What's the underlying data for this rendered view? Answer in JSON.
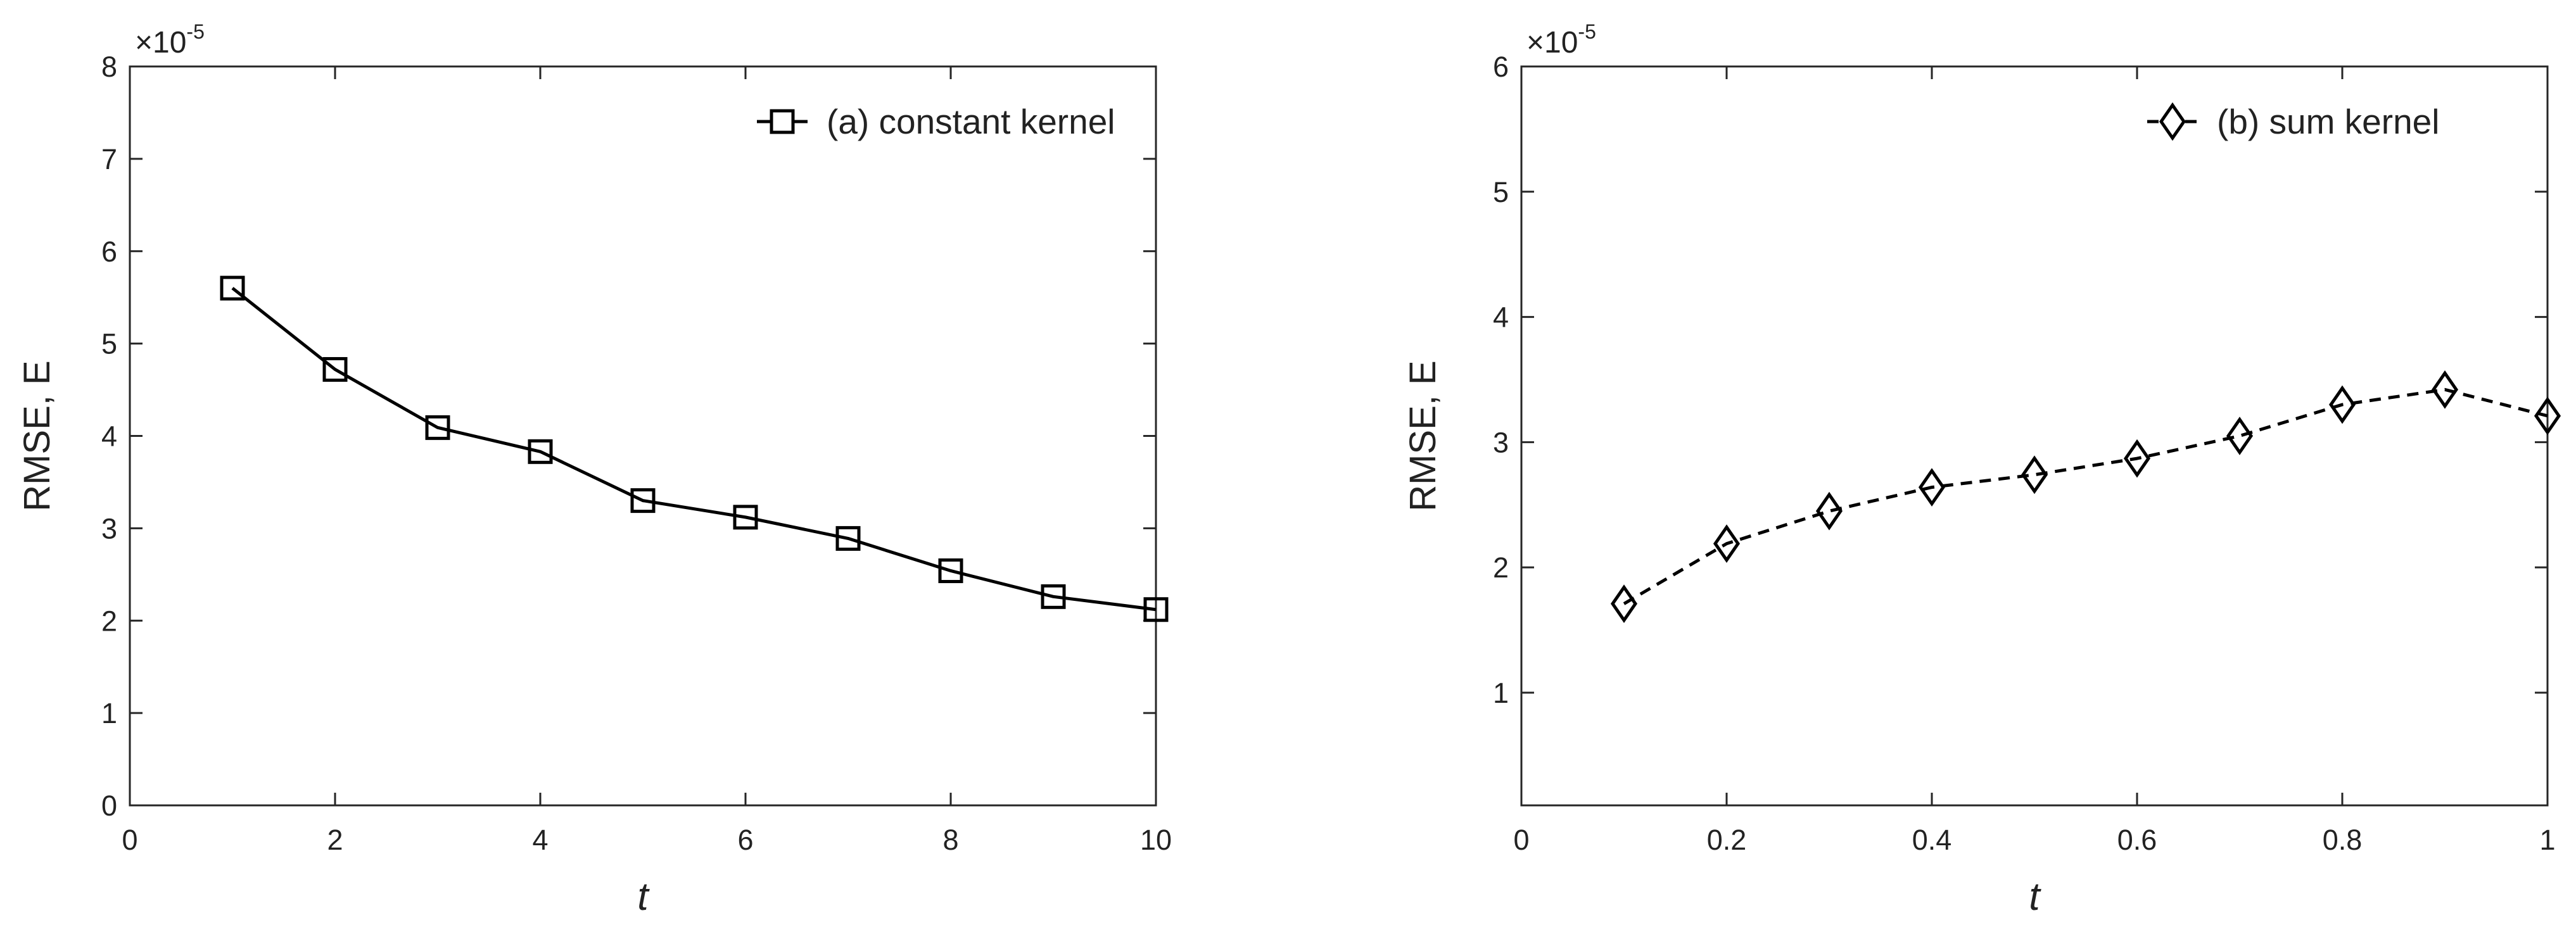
{
  "chart_data": [
    {
      "type": "line",
      "xlabel": "t",
      "ylabel": "RMSE, E",
      "xlim": [
        0,
        10
      ],
      "ylim": [
        0,
        8
      ],
      "xticks": [
        "0",
        "2",
        "4",
        "6",
        "8",
        "10"
      ],
      "yticks": [
        "0",
        "1",
        "2",
        "3",
        "4",
        "5",
        "6",
        "7",
        "8"
      ],
      "y_multiplier": {
        "base": "×10",
        "exponent": "-5"
      },
      "legend_position": "top-right",
      "grid": false,
      "series": [
        {
          "name": "(a) constant kernel",
          "marker": "square",
          "line_style": "solid",
          "color": "#000000",
          "x": [
            1,
            2,
            3,
            4,
            5,
            6,
            7,
            8,
            9,
            10
          ],
          "y": [
            5.6,
            4.72,
            4.09,
            3.83,
            3.3,
            3.12,
            2.89,
            2.54,
            2.26,
            2.12
          ]
        }
      ]
    },
    {
      "type": "line",
      "xlabel": "t",
      "ylabel": "RMSE, E",
      "xlim": [
        0,
        1
      ],
      "ylim": [
        0.1,
        6
      ],
      "xticks": [
        "0",
        "0.2",
        "0.4",
        "0.6",
        "0.8",
        "1"
      ],
      "yticks": [
        "1",
        "2",
        "3",
        "4",
        "5",
        "6"
      ],
      "y_multiplier": {
        "base": "×10",
        "exponent": "-5"
      },
      "legend_position": "top-right",
      "grid": false,
      "series": [
        {
          "name": "(b) sum kernel",
          "marker": "diamond",
          "line_style": "dashed",
          "color": "#000000",
          "x": [
            0.1,
            0.2,
            0.3,
            0.4,
            0.5,
            0.6,
            0.7,
            0.8,
            0.9,
            1.0
          ],
          "y": [
            1.71,
            2.19,
            2.45,
            2.64,
            2.74,
            2.87,
            3.05,
            3.3,
            3.42,
            3.21
          ]
        }
      ]
    }
  ]
}
